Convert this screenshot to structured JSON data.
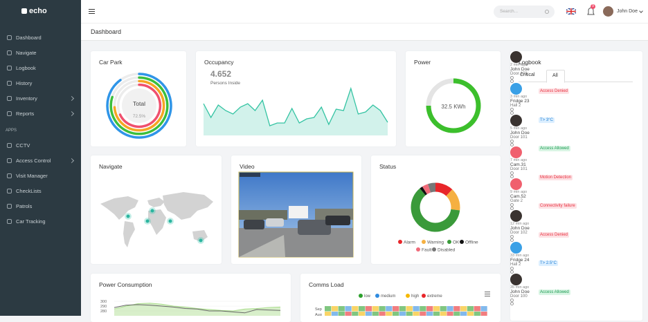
{
  "sidebar": {
    "brand": "echo",
    "nav": [
      {
        "label": "Dashboard"
      },
      {
        "label": "Navigate"
      },
      {
        "label": "Logbook"
      },
      {
        "label": "History"
      },
      {
        "label": "Inventory",
        "submenu": true
      },
      {
        "label": "Reports",
        "submenu": true
      }
    ],
    "section_label": "APPS",
    "apps": [
      {
        "label": "CCTV"
      },
      {
        "label": "Access Control",
        "submenu": true
      },
      {
        "label": "Visit Manager"
      },
      {
        "label": "CheckLists"
      },
      {
        "label": "Patrols"
      },
      {
        "label": "Car Tracking"
      }
    ]
  },
  "topbar": {
    "search_placeholder": "Search...",
    "notification_count": "9",
    "user_name": "John Doe"
  },
  "page_title": "Dashboard",
  "car_park": {
    "title": "Car Park",
    "center_label": "Total",
    "center_value": "72.5%",
    "rings": [
      {
        "color": "#2f95e8",
        "value": 90
      },
      {
        "color": "#3cbf3c",
        "value": 80
      },
      {
        "color": "#f5a623",
        "value": 74
      },
      {
        "color": "#f0506e",
        "value": 68
      }
    ]
  },
  "occupancy": {
    "title": "Occupancy",
    "value": "4.652",
    "label": "Persons Inside",
    "color": "#33c3a2",
    "values": [
      46,
      26,
      44,
      36,
      31,
      41,
      46,
      36,
      51,
      14,
      18,
      18,
      39,
      18,
      24,
      26,
      41,
      16,
      38,
      36,
      68,
      31,
      34,
      44,
      36,
      19
    ]
  },
  "power": {
    "title": "Power",
    "value_label": "32.5 KWh",
    "fill_percent": 75,
    "color": "#3cbf2c"
  },
  "navigate": {
    "title": "Navigate"
  },
  "video": {
    "title": "Video"
  },
  "status": {
    "title": "Status",
    "segments": [
      {
        "name": "Alarm",
        "color": "#e8262a",
        "value": 12
      },
      {
        "name": "Warning",
        "color": "#f5b041",
        "value": 15
      },
      {
        "name": "OK",
        "color": "#3a9a3a",
        "value": 62
      },
      {
        "name": "Offline",
        "color": "#111111",
        "value": 2
      },
      {
        "name": "Fault",
        "color": "#f06b7a",
        "value": 4
      },
      {
        "name": "Disabled",
        "color": "#777777",
        "value": 5
      }
    ]
  },
  "power_consumption": {
    "title": "Power Consumption",
    "yticks": [
      300,
      290,
      280
    ],
    "series": [
      {
        "color": "#666666",
        "values": [
          287,
          292,
          293,
          292,
          290,
          288,
          285,
          284,
          280,
          280,
          278,
          276,
          283,
          282,
          281
        ]
      },
      {
        "color": "#a8dc8a",
        "values": [
          284,
          290,
          295,
          296,
          294,
          290,
          288,
          285,
          283,
          281,
          280,
          284,
          285,
          287,
          288
        ]
      }
    ]
  },
  "comms_load": {
    "title": "Comms Load",
    "legend": [
      {
        "name": "low",
        "color": "#2ca02c"
      },
      {
        "name": "medium",
        "color": "#2f8be0"
      },
      {
        "name": "high",
        "color": "#f5b800"
      },
      {
        "name": "extreme",
        "color": "#e8262a"
      }
    ],
    "rows": [
      {
        "label": "Sep",
        "levels": [
          0,
          2,
          0,
          1,
          2,
          0,
          3,
          2,
          0,
          1,
          3,
          0,
          2,
          1,
          0,
          3,
          2,
          0,
          1,
          3,
          2,
          0,
          3,
          1
        ]
      },
      {
        "label": "Aug",
        "levels": [
          2,
          1,
          0,
          3,
          0,
          2,
          1,
          0,
          3,
          2,
          0,
          1,
          0,
          2,
          3,
          1,
          0,
          2,
          3,
          0,
          1,
          2,
          0,
          3
        ]
      }
    ]
  },
  "logbook": {
    "title": "Logbook",
    "tabs": [
      "Critical",
      "All"
    ],
    "entries": [
      {
        "event": "Access Denied",
        "tone": "red",
        "avatar": "person",
        "subject": "John Doe",
        "location": "Door 101",
        "time": "2 min ago"
      },
      {
        "event": "T> 3°C",
        "tone": "blue",
        "avatar": "blue",
        "subject": "Fridge 23",
        "location": "Hall 2",
        "time": "3 min ago"
      },
      {
        "event": "Access Allowed",
        "tone": "green",
        "avatar": "person",
        "subject": "John Doe",
        "location": "Door 101",
        "time": "5 min ago"
      },
      {
        "event": "Motion Detection",
        "tone": "red",
        "avatar": "red",
        "subject": "Cam.31",
        "location": "Door 101",
        "time": "7 min ago"
      },
      {
        "event": "Connectivity failure",
        "tone": "red",
        "avatar": "red",
        "subject": "Cam.52",
        "location": "Gate 2",
        "time": "9 min ago"
      },
      {
        "event": "Access Denied",
        "tone": "red",
        "avatar": "person",
        "subject": "John Doe",
        "location": "Door 102",
        "time": "12 min ago"
      },
      {
        "event": "T> 2.5°C",
        "tone": "blue",
        "avatar": "blue",
        "subject": "Fridge 24",
        "location": "Hall 2",
        "time": "33 min ago"
      },
      {
        "event": "Access Allowed",
        "tone": "green",
        "avatar": "person",
        "subject": "John Doe",
        "location": "Door 100",
        "time": "35 min ago"
      }
    ]
  }
}
